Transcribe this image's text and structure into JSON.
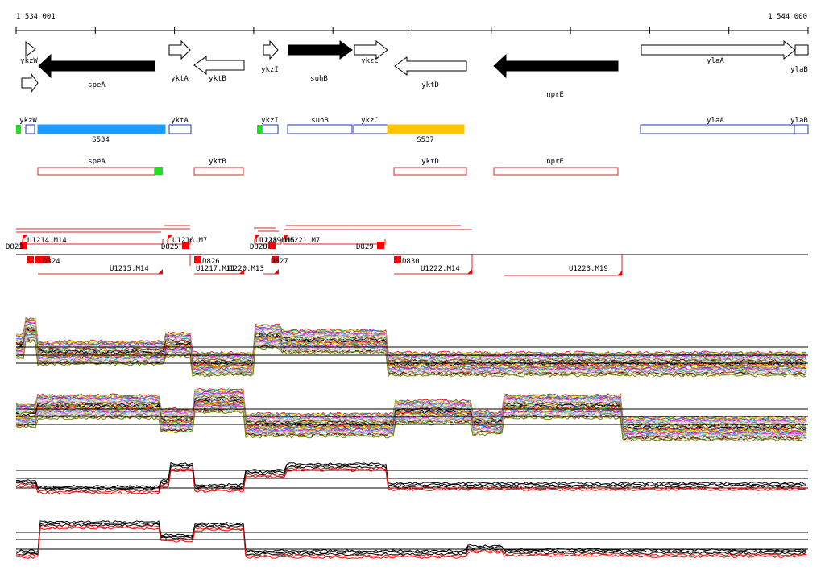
{
  "coords": {
    "start": "1 534 001",
    "end": "1 544 000"
  },
  "genes_fwd": [
    {
      "label": "ykzW",
      "fill": "#ffffff"
    },
    {
      "label": "",
      "fill": "#ffffff"
    },
    {
      "label": "yktA",
      "fill": "#ffffff"
    },
    {
      "label": "ykzI",
      "fill": "#ffffff"
    },
    {
      "label": "suhB",
      "fill": "#000000"
    },
    {
      "label": "ykzC",
      "fill": "#ffffff"
    },
    {
      "label": "ylaA",
      "fill": "#ffffff"
    },
    {
      "label": "ylaB",
      "fill": "#ffffff"
    }
  ],
  "genes_rev": [
    {
      "label": "speA",
      "fill": "#000000"
    },
    {
      "label": "yktB",
      "fill": "#ffffff"
    },
    {
      "label": "yktD",
      "fill": "#ffffff"
    },
    {
      "label": "nprE",
      "fill": "#000000"
    }
  ],
  "transcripts_fwd": [
    {
      "label": "ykzW",
      "color": "#1e32c8",
      "fill": "#ffffff"
    },
    {
      "label": "S534",
      "color": "#1e9bff",
      "fill": "#1e9bff"
    },
    {
      "label": "yktA",
      "color": "#1e32c8",
      "fill": "#ffffff"
    },
    {
      "label": "ykzI",
      "color": "#1e32c8",
      "fill": "#ffffff"
    },
    {
      "label": "suhB",
      "color": "#1e32c8",
      "fill": "#ffffff"
    },
    {
      "label": "ykzC",
      "color": "#1e32c8",
      "fill": "#ffffff"
    },
    {
      "label": "S537",
      "color": "#ffc400",
      "fill": "#ffc400"
    },
    {
      "label": "ylaA",
      "color": "#1e32c8",
      "fill": "#ffffff"
    },
    {
      "label": "ylaB",
      "color": "#1e32c8",
      "fill": "#ffffff"
    }
  ],
  "transcripts_rev": [
    {
      "label": "speA"
    },
    {
      "label": "yktB"
    },
    {
      "label": "yktD"
    },
    {
      "label": "nprE"
    }
  ],
  "segments_upper": [
    {
      "label": "U1214.M14"
    },
    {
      "label": "U1216.M7"
    },
    {
      "label": "U1218.M15"
    },
    {
      "label": "U1219.M6"
    },
    {
      "label": "U1221.M7"
    }
  ],
  "segments_lower": [
    {
      "label": "U1215.M14"
    },
    {
      "label": "U1217.M11"
    },
    {
      "label": "U1220.M13"
    },
    {
      "label": "U1222.M14"
    },
    {
      "label": "U1223.M19"
    }
  ],
  "downshifts": [
    {
      "label": "D823"
    },
    {
      "label": "D824"
    },
    {
      "label": "D825"
    },
    {
      "label": "D826"
    },
    {
      "label": "D828"
    },
    {
      "label": "D827"
    },
    {
      "label": "D829"
    },
    {
      "label": "D830"
    }
  ],
  "colors": {
    "axis": "#000000",
    "forward_transcript": "#1e32c8",
    "reverse_transcript": "#e02020",
    "marker": "#ff0000",
    "start_marker": "#22dd22",
    "summary_line": "#000000",
    "summary_highlight": "#e01010"
  }
}
